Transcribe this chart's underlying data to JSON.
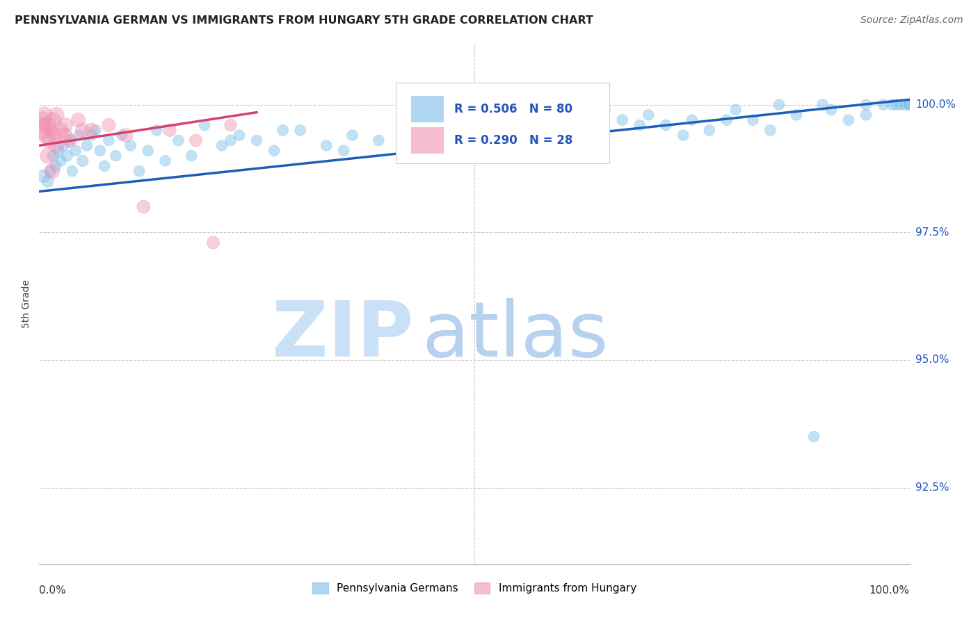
{
  "title": "PENNSYLVANIA GERMAN VS IMMIGRANTS FROM HUNGARY 5TH GRADE CORRELATION CHART",
  "source": "Source: ZipAtlas.com",
  "ylabel": "5th Grade",
  "xlim": [
    0,
    100
  ],
  "ylim": [
    91.0,
    101.2
  ],
  "yticks": [
    92.5,
    95.0,
    97.5,
    100.0
  ],
  "ytick_labels": [
    "92.5%",
    "95.0%",
    "97.5%",
    "100.0%"
  ],
  "blue_R": 0.506,
  "blue_N": 80,
  "pink_R": 0.29,
  "pink_N": 28,
  "blue_color": "#7bbde8",
  "pink_color": "#f093b0",
  "trend_blue": "#1a5fba",
  "trend_pink": "#d84070",
  "watermark_zip": "ZIP",
  "watermark_atlas": "atlas",
  "watermark_color_zip": "#cce0f5",
  "watermark_color_atlas": "#b8d4ee",
  "legend_label_blue": "Pennsylvania Germans",
  "legend_label_pink": "Immigrants from Hungary",
  "blue_x": [
    0.5,
    1.0,
    1.3,
    1.6,
    1.9,
    2.2,
    2.5,
    2.8,
    3.2,
    3.5,
    3.8,
    4.2,
    4.6,
    5.0,
    5.5,
    6.0,
    6.5,
    7.0,
    7.5,
    8.0,
    8.8,
    9.5,
    10.5,
    11.5,
    12.5,
    13.5,
    14.5,
    16.0,
    17.5,
    19.0,
    21.0,
    23.0,
    25.0,
    27.0,
    30.0,
    33.0,
    36.0,
    39.0,
    43.0,
    47.0,
    52.0,
    57.0,
    62.0,
    67.0,
    72.0,
    77.0,
    82.0,
    87.0,
    91.0,
    93.0,
    95.0,
    97.0,
    98.5,
    99.5,
    100.0,
    55.0,
    60.0,
    65.0,
    70.0,
    75.0,
    80.0,
    85.0,
    90.0,
    95.0,
    98.0,
    99.0,
    100.0,
    22.0,
    28.0,
    35.0,
    42.0,
    48.0,
    54.0,
    59.0,
    64.0,
    69.0,
    74.0,
    79.0,
    84.0,
    89.0
  ],
  "blue_y": [
    98.6,
    98.5,
    98.7,
    99.0,
    98.8,
    99.1,
    98.9,
    99.2,
    99.0,
    99.3,
    98.7,
    99.1,
    99.4,
    98.9,
    99.2,
    99.4,
    99.5,
    99.1,
    98.8,
    99.3,
    99.0,
    99.4,
    99.2,
    98.7,
    99.1,
    99.5,
    98.9,
    99.3,
    99.0,
    99.6,
    99.2,
    99.4,
    99.3,
    99.1,
    99.5,
    99.2,
    99.4,
    99.3,
    99.1,
    99.5,
    99.6,
    99.5,
    99.4,
    99.7,
    99.6,
    99.5,
    99.7,
    99.8,
    99.9,
    99.7,
    99.8,
    100.0,
    100.0,
    100.0,
    100.0,
    99.7,
    99.8,
    99.9,
    99.8,
    99.7,
    99.9,
    100.0,
    100.0,
    100.0,
    100.0,
    100.0,
    100.0,
    99.3,
    99.5,
    99.1,
    99.4,
    99.6,
    99.2,
    99.5,
    99.3,
    99.6,
    99.4,
    99.7,
    99.5,
    93.5
  ],
  "blue_sizes": [
    180,
    160,
    150,
    140,
    130,
    130,
    130,
    130,
    140,
    130,
    130,
    130,
    130,
    140,
    130,
    130,
    130,
    130,
    130,
    130,
    130,
    130,
    130,
    130,
    130,
    130,
    130,
    130,
    130,
    130,
    130,
    130,
    130,
    130,
    130,
    130,
    130,
    130,
    130,
    130,
    130,
    130,
    130,
    130,
    130,
    130,
    130,
    130,
    130,
    130,
    130,
    130,
    130,
    130,
    130,
    130,
    130,
    130,
    130,
    130,
    130,
    130,
    130,
    130,
    130,
    130,
    130,
    130,
    130,
    130,
    130,
    130,
    130,
    130,
    130,
    130,
    130,
    130,
    130,
    130
  ],
  "pink_x": [
    0.2,
    0.4,
    0.5,
    0.6,
    0.8,
    1.0,
    1.2,
    1.4,
    1.6,
    1.8,
    2.0,
    2.5,
    3.0,
    3.5,
    4.5,
    6.0,
    8.0,
    10.0,
    12.0,
    15.0,
    18.0,
    20.0,
    22.0,
    1.0,
    1.5,
    2.0,
    3.0,
    5.0
  ],
  "pink_y": [
    99.5,
    99.7,
    99.6,
    99.8,
    99.4,
    99.6,
    99.3,
    99.5,
    99.7,
    99.4,
    99.8,
    99.5,
    99.6,
    99.3,
    99.7,
    99.5,
    99.6,
    99.4,
    98.0,
    99.5,
    99.3,
    97.3,
    99.6,
    99.0,
    98.7,
    99.2,
    99.4,
    99.5
  ],
  "pink_sizes": [
    400,
    300,
    300,
    280,
    280,
    270,
    260,
    260,
    250,
    250,
    250,
    240,
    230,
    220,
    220,
    210,
    200,
    200,
    190,
    180,
    170,
    170,
    160,
    260,
    250,
    250,
    230,
    220
  ],
  "blue_trend_x": [
    0,
    100
  ],
  "blue_trend_y": [
    98.3,
    100.1
  ],
  "pink_trend_x": [
    0,
    25
  ],
  "pink_trend_y": [
    99.2,
    99.85
  ]
}
